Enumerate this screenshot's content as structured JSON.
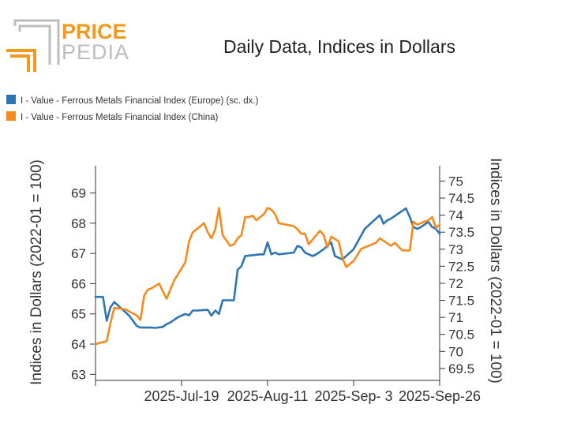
{
  "logo": {
    "line1": "PRICE",
    "line2": "PEDIA",
    "colors": {
      "orange": "#f39a1e",
      "grey": "#bdbdbd"
    }
  },
  "chart_data": {
    "type": "line",
    "title": "Daily Data, Indices in Dollars",
    "ylabel_left": "Indices in Dollars (2022-01 = 100)",
    "ylabel_right": "Indices in Dollars (2022-01 = 100)",
    "legend_position": "top-left",
    "grid": false,
    "x_tick_labels": [
      "2025-Jul-19",
      "2025-Aug-11",
      "2025-Sep- 3",
      "2025-Sep-26"
    ],
    "x_range": [
      "2025-Jun-26",
      "2025-Sep-26"
    ],
    "y_left": {
      "ylim": [
        62.8,
        69.9
      ],
      "ticks": [
        "63",
        "64",
        "65",
        "66",
        "67",
        "68",
        "69"
      ]
    },
    "y_right": {
      "ylim": [
        69.15,
        75.45
      ],
      "ticks": [
        "69.5",
        "70",
        "70.5",
        "71",
        "71.5",
        "72",
        "72.5",
        "73",
        "73.5",
        "74",
        "74.5",
        "75"
      ]
    },
    "series": [
      {
        "name": "I - Value - Ferrous Metals Financial Index (Europe) (sc. dx.)",
        "color": "#2e75b6",
        "axis": "right",
        "x": [
          "2025-Jun-26",
          "2025-Jun-28",
          "2025-Jun-29",
          "2025-Jun-30",
          "2025-Jul-01",
          "2025-Jul-03",
          "2025-Jul-05",
          "2025-Jul-06",
          "2025-Jul-07",
          "2025-Jul-08",
          "2025-Jul-09",
          "2025-Jul-10",
          "2025-Jul-11",
          "2025-Jul-12",
          "2025-Jul-14",
          "2025-Jul-15",
          "2025-Jul-16",
          "2025-Jul-18",
          "2025-Jul-20",
          "2025-Jul-21",
          "2025-Jul-22",
          "2025-Jul-23",
          "2025-Jul-26",
          "2025-Jul-27",
          "2025-Jul-28",
          "2025-Jul-29",
          "2025-Jul-30",
          "2025-Aug-02",
          "2025-Aug-03",
          "2025-Aug-04",
          "2025-Aug-05",
          "2025-Aug-09",
          "2025-Aug-10",
          "2025-Aug-11",
          "2025-Aug-12",
          "2025-Aug-13",
          "2025-Aug-14",
          "2025-Aug-18",
          "2025-Aug-19",
          "2025-Aug-20",
          "2025-Aug-21",
          "2025-Aug-23",
          "2025-Aug-24",
          "2025-Aug-26",
          "2025-Aug-28",
          "2025-Aug-29",
          "2025-Aug-31",
          "2025-Sep-02",
          "2025-Sep-03",
          "2025-Sep-04",
          "2025-Sep-05",
          "2025-Sep-06",
          "2025-Sep-08",
          "2025-Sep-10",
          "2025-Sep-11",
          "2025-Sep-12",
          "2025-Sep-13",
          "2025-Sep-17",
          "2025-Sep-18",
          "2025-Sep-19",
          "2025-Sep-20",
          "2025-Sep-21",
          "2025-Sep-23",
          "2025-Sep-24",
          "2025-Sep-25",
          "2025-Sep-26"
        ],
        "values": [
          71.6,
          71.6,
          70.9,
          71.3,
          71.45,
          71.25,
          71.05,
          70.9,
          70.75,
          70.7,
          70.7,
          70.7,
          70.7,
          70.69,
          70.72,
          70.8,
          70.85,
          71.0,
          71.1,
          71.06,
          71.2,
          71.2,
          71.22,
          71.05,
          71.2,
          71.1,
          71.5,
          71.5,
          72.4,
          72.5,
          72.8,
          72.85,
          72.85,
          73.2,
          72.85,
          72.9,
          72.85,
          72.9,
          73.1,
          73.05,
          72.9,
          72.8,
          72.85,
          73.0,
          73.2,
          72.8,
          72.7,
          72.9,
          73.0,
          73.2,
          73.4,
          73.6,
          73.8,
          74.0,
          73.75,
          73.85,
          73.9,
          74.2,
          73.95,
          73.65,
          73.6,
          73.65,
          73.8,
          73.65,
          73.6,
          73.45
        ]
      },
      {
        "name": "I - Value - Ferrous Metals Financial Index (China)",
        "color": "#f58b1f",
        "axis": "left",
        "x": [
          "2025-Jun-26",
          "2025-Jun-29",
          "2025-Jun-30",
          "2025-Jul-01",
          "2025-Jul-04",
          "2025-Jul-07",
          "2025-Jul-08",
          "2025-Jul-09",
          "2025-Jul-10",
          "2025-Jul-11",
          "2025-Jul-13",
          "2025-Jul-15",
          "2025-Jul-17",
          "2025-Jul-18",
          "2025-Jul-20",
          "2025-Jul-21",
          "2025-Jul-22",
          "2025-Jul-23",
          "2025-Jul-25",
          "2025-Jul-26",
          "2025-Jul-27",
          "2025-Jul-28",
          "2025-Jul-29",
          "2025-Jul-30",
          "2025-Aug-01",
          "2025-Aug-02",
          "2025-Aug-03",
          "2025-Aug-04",
          "2025-Aug-05",
          "2025-Aug-06",
          "2025-Aug-07",
          "2025-Aug-08",
          "2025-Aug-09",
          "2025-Aug-10",
          "2025-Aug-11",
          "2025-Aug-12",
          "2025-Aug-13",
          "2025-Aug-14",
          "2025-Aug-18",
          "2025-Aug-19",
          "2025-Aug-20",
          "2025-Aug-21",
          "2025-Aug-22",
          "2025-Aug-24",
          "2025-Aug-25",
          "2025-Aug-26",
          "2025-Aug-27",
          "2025-Aug-28",
          "2025-Aug-30",
          "2025-Aug-31",
          "2025-Sep-01",
          "2025-Sep-03",
          "2025-Sep-05",
          "2025-Sep-06",
          "2025-Sep-08",
          "2025-Sep-09",
          "2025-Sep-10",
          "2025-Sep-13",
          "2025-Sep-14",
          "2025-Sep-16",
          "2025-Sep-18",
          "2025-Sep-19",
          "2025-Sep-20",
          "2025-Sep-23",
          "2025-Sep-24",
          "2025-Sep-25",
          "2025-Sep-26"
        ],
        "values": [
          64.0,
          64.1,
          64.7,
          65.2,
          65.15,
          64.95,
          64.8,
          65.6,
          65.8,
          65.85,
          66.0,
          65.5,
          66.1,
          66.3,
          66.7,
          67.4,
          67.7,
          67.8,
          68.0,
          67.7,
          67.5,
          67.8,
          68.5,
          67.6,
          67.25,
          67.3,
          67.5,
          67.6,
          68.2,
          68.2,
          68.25,
          68.1,
          68.2,
          68.3,
          68.5,
          68.45,
          68.3,
          68.0,
          67.9,
          67.8,
          67.65,
          67.65,
          67.3,
          67.6,
          67.75,
          67.6,
          67.2,
          67.55,
          67.4,
          66.85,
          66.55,
          66.75,
          67.15,
          67.2,
          67.3,
          67.35,
          67.5,
          67.25,
          67.35,
          67.1,
          67.1,
          68.05,
          67.95,
          68.1,
          68.2,
          67.85,
          67.95
        ]
      }
    ]
  }
}
